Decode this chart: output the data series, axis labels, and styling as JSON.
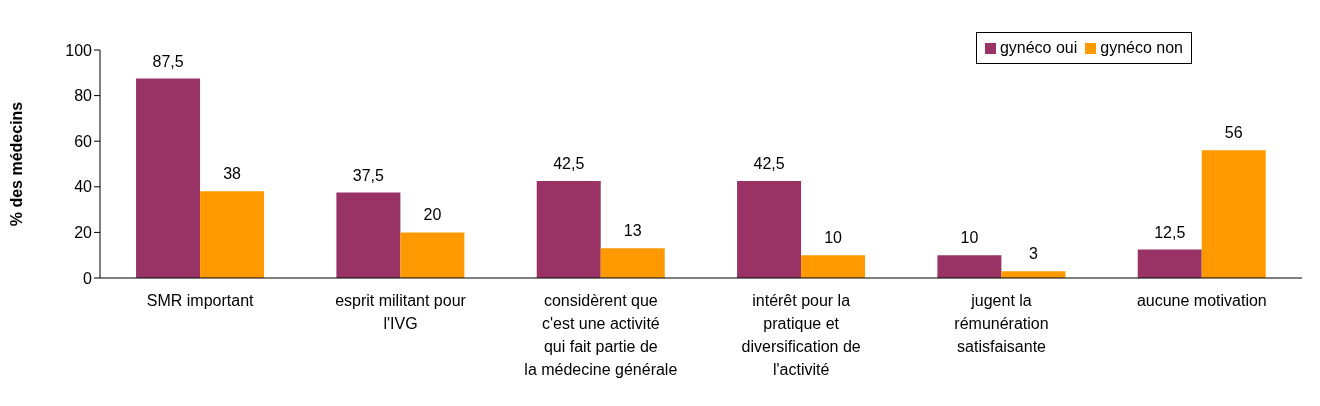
{
  "chart_data": {
    "type": "bar",
    "ylabel": "% des médecins",
    "categories": [
      "SMR important",
      "esprit militant pour l'IVG",
      "considèrent que c'est une activité qui fait partie de la médecine générale",
      "intérêt pour la pratique et diversification de l'activité",
      "jugent la rémunération satisfaisante",
      "aucune motivation"
    ],
    "series": [
      {
        "name": "gynéco oui",
        "color": "#993366",
        "values": [
          87.5,
          37.5,
          42.5,
          42.5,
          10,
          12.5
        ],
        "value_labels": [
          "87,5",
          "37,5",
          "42,5",
          "42,5",
          "10",
          "12,5"
        ]
      },
      {
        "name": "gynéco non",
        "color": "#ff9900",
        "values": [
          38,
          20,
          13,
          10,
          3,
          56
        ],
        "value_labels": [
          "38",
          "20",
          "13",
          "10",
          "3",
          "56"
        ]
      }
    ],
    "ylim": [
      0,
      100
    ],
    "yticks": [
      0,
      20,
      40,
      60,
      80,
      100
    ],
    "grid": false,
    "legend": "top right"
  }
}
